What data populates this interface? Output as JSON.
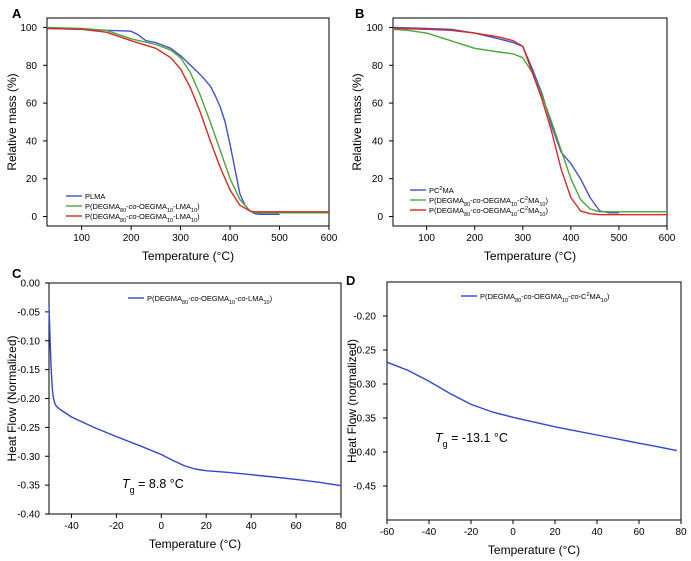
{
  "chart_data": [
    {
      "panel": "A",
      "type": "line",
      "xlabel": "Temperature (°C)",
      "ylabel": "Relative mass (%)",
      "xlim": [
        30,
        600
      ],
      "ylim": [
        -5,
        105
      ],
      "xticks": [
        100,
        200,
        300,
        400,
        500,
        600
      ],
      "yticks": [
        0,
        20,
        40,
        60,
        80,
        100
      ],
      "legend_position": "lower-left",
      "series": [
        {
          "name": "PLMA",
          "legend_parts": [
            [
              "PLMA",
              ""
            ]
          ],
          "color": "#3f51c8",
          "x": [
            30,
            100,
            150,
            200,
            215,
            230,
            250,
            280,
            300,
            320,
            340,
            360,
            370,
            380,
            390,
            400,
            410,
            420,
            430,
            440,
            450,
            460,
            500
          ],
          "y": [
            99.5,
            99,
            98.5,
            98,
            96,
            93,
            92,
            89,
            85,
            80,
            75,
            69,
            64,
            58,
            50,
            38,
            25,
            12,
            6,
            3,
            1.5,
            1.2,
            1.2
          ]
        },
        {
          "name": "P(DEGMA80-co-OEGMA10-LMA10)",
          "legend_parts": [
            [
              "P(DEGMA",
              ""
            ],
            [
              "80",
              "sub"
            ],
            [
              "-",
              ""
            ],
            [
              "co",
              "i"
            ],
            [
              "-OEGMA",
              ""
            ],
            [
              "10",
              "sub"
            ],
            [
              "-LMA",
              ""
            ],
            [
              "10",
              "sub"
            ],
            [
              ")",
              ""
            ]
          ],
          "color": "#4ea43a",
          "x": [
            30,
            100,
            150,
            200,
            250,
            280,
            300,
            320,
            340,
            360,
            380,
            400,
            420,
            440,
            450,
            460,
            600
          ],
          "y": [
            100,
            99.5,
            98.5,
            94,
            91,
            88,
            84,
            76,
            64,
            50,
            35,
            20,
            9,
            3,
            2,
            2,
            2
          ]
        },
        {
          "name": "P(DEGMA80-co-OEGMA10-LMA10)",
          "legend_parts": [
            [
              "P(DEGMA",
              ""
            ],
            [
              "80",
              "sub"
            ],
            [
              "-",
              ""
            ],
            [
              "co",
              "i"
            ],
            [
              "-OEGMA",
              ""
            ],
            [
              "10",
              "sub"
            ],
            [
              "-LMA",
              ""
            ],
            [
              "10",
              "sub"
            ],
            [
              ")",
              ""
            ]
          ],
          "color": "#d62828",
          "x": [
            30,
            100,
            150,
            200,
            250,
            280,
            300,
            320,
            340,
            360,
            380,
            400,
            420,
            440,
            450,
            460,
            600
          ],
          "y": [
            99.5,
            99,
            97.5,
            93,
            89,
            84,
            78,
            68,
            55,
            40,
            26,
            14,
            6,
            3,
            2.5,
            2.5,
            2.5
          ]
        }
      ]
    },
    {
      "panel": "B",
      "type": "line",
      "xlabel": "Temperature (°C)",
      "ylabel": "Relative mass (%)",
      "xlim": [
        30,
        600
      ],
      "ylim": [
        -5,
        105
      ],
      "xticks": [
        100,
        200,
        300,
        400,
        500,
        600
      ],
      "yticks": [
        0,
        20,
        40,
        60,
        80,
        100
      ],
      "legend_position": "lower-left",
      "series": [
        {
          "name": "PC2MA",
          "legend_parts": [
            [
              "PC",
              ""
            ],
            [
              "2",
              "sup"
            ],
            [
              "MA",
              ""
            ]
          ],
          "color": "#3f51c8",
          "x": [
            30,
            100,
            150,
            200,
            250,
            280,
            300,
            320,
            340,
            360,
            380,
            400,
            420,
            440,
            460,
            480,
            500
          ],
          "y": [
            100,
            99.5,
            99,
            97,
            94,
            92,
            90,
            78,
            65,
            48,
            34,
            28,
            20,
            10,
            3,
            2,
            2
          ]
        },
        {
          "name": "P(DEGMA80-co-OEGMA10-C2MA10)",
          "legend_parts": [
            [
              "P(DEGMA",
              ""
            ],
            [
              "80",
              "sub"
            ],
            [
              "-",
              ""
            ],
            [
              "co",
              "i"
            ],
            [
              "-OEGMA",
              ""
            ],
            [
              "10",
              "sub"
            ],
            [
              "-C",
              ""
            ],
            [
              "2",
              "sup"
            ],
            [
              "MA",
              ""
            ],
            [
              "10",
              "sub"
            ],
            [
              ")",
              ""
            ]
          ],
          "color": "#4ea43a",
          "x": [
            30,
            60,
            100,
            150,
            200,
            250,
            280,
            300,
            320,
            340,
            360,
            380,
            400,
            420,
            440,
            460,
            600
          ],
          "y": [
            99,
            98.5,
            97,
            93,
            89,
            87,
            86,
            84,
            76,
            64,
            50,
            35,
            20,
            9,
            4,
            2.5,
            2.5
          ]
        },
        {
          "name": "P(DEGMA80-co-OEGMA10-C2MA10)",
          "legend_parts": [
            [
              "P(DEGMA",
              ""
            ],
            [
              "80",
              "sub"
            ],
            [
              "-",
              ""
            ],
            [
              "co",
              "i"
            ],
            [
              "-OEGMA",
              ""
            ],
            [
              "10",
              "sub"
            ],
            [
              "-C",
              ""
            ],
            [
              "2",
              "sup"
            ],
            [
              "MA",
              ""
            ],
            [
              "10",
              "sub"
            ],
            [
              ")",
              ""
            ]
          ],
          "color": "#d62828",
          "x": [
            30,
            100,
            150,
            200,
            250,
            280,
            300,
            320,
            340,
            360,
            380,
            400,
            420,
            440,
            460,
            600
          ],
          "y": [
            99.5,
            99,
            98.5,
            97,
            95,
            93,
            90,
            76,
            62,
            45,
            25,
            10,
            3,
            1.5,
            1,
            1
          ]
        }
      ]
    },
    {
      "panel": "C",
      "type": "line",
      "xlabel": "Temperature (°C)",
      "ylabel": "Heat Flow (Normalized)",
      "xlim": [
        -50,
        80
      ],
      "ylim": [
        -0.4,
        0.0
      ],
      "xticks": [
        -40,
        -20,
        0,
        20,
        40,
        60,
        80
      ],
      "yticks": [
        0.0,
        -0.05,
        -0.1,
        -0.15,
        -0.2,
        -0.25,
        -0.3,
        -0.35,
        -0.4
      ],
      "ytick_labels": [
        "0.00",
        "-0.05",
        "-0.10",
        "-0.15",
        "-0.20",
        "-0.25",
        "-0.30",
        "-0.35",
        "-0.40"
      ],
      "legend_position": "top-right",
      "annotation": {
        "prefix": "T",
        "sub": "g",
        "text": " = 8.8 °C"
      },
      "series": [
        {
          "name": "P(DEGMA80-co-OEGMA10-co-LMA10)",
          "legend_parts": [
            [
              "P(DEGMA",
              ""
            ],
            [
              "80",
              "sub"
            ],
            [
              "-",
              ""
            ],
            [
              "co",
              "i"
            ],
            [
              "-OEGMA",
              ""
            ],
            [
              "10",
              "sub"
            ],
            [
              "-",
              ""
            ],
            [
              "co",
              "i"
            ],
            [
              "-LMA",
              ""
            ],
            [
              "10",
              "sub"
            ],
            [
              ")",
              ""
            ]
          ],
          "color": "#2f48d0",
          "x": [
            -50,
            -49.5,
            -49,
            -48.5,
            -48,
            -47.5,
            -47,
            -46,
            -45,
            -40,
            -30,
            -20,
            -10,
            0,
            5,
            10,
            15,
            20,
            30,
            40,
            50,
            60,
            70,
            80
          ],
          "y": [
            -0.04,
            -0.1,
            -0.15,
            -0.185,
            -0.2,
            -0.207,
            -0.212,
            -0.216,
            -0.219,
            -0.232,
            -0.25,
            -0.266,
            -0.281,
            -0.297,
            -0.307,
            -0.316,
            -0.322,
            -0.325,
            -0.328,
            -0.332,
            -0.336,
            -0.34,
            -0.345,
            -0.351
          ]
        }
      ]
    },
    {
      "panel": "D",
      "type": "line",
      "xlabel": "Temperature (°C)",
      "ylabel": "Heat Flow (normalized)",
      "xlim": [
        -60,
        80
      ],
      "ylim": [
        -0.5,
        -0.15
      ],
      "xticks": [
        -60,
        -40,
        -20,
        0,
        20,
        40,
        60,
        80
      ],
      "yticks": [
        -0.2,
        -0.25,
        -0.3,
        -0.35,
        -0.4,
        -0.45
      ],
      "ytick_labels": [
        "-0.20",
        "-0.25",
        "-0.30",
        "-0.35",
        "-0.40",
        "-0.45"
      ],
      "legend_position": "top-right",
      "annotation": {
        "prefix": "T",
        "sub": "g",
        "text": " = -13.1 °C"
      },
      "series": [
        {
          "name": "P(DEGMA80-co-OEGMA10-co-C2MA10)",
          "legend_parts": [
            [
              "P(DEGMA",
              ""
            ],
            [
              "80",
              "sub"
            ],
            [
              "-",
              ""
            ],
            [
              "co",
              "i"
            ],
            [
              "-OEGMA",
              ""
            ],
            [
              "10",
              "sub"
            ],
            [
              "-",
              ""
            ],
            [
              "co",
              "i"
            ],
            [
              "-C",
              ""
            ],
            [
              "2",
              "sup"
            ],
            [
              "MA",
              ""
            ],
            [
              "10",
              "sub"
            ],
            [
              ")",
              ""
            ]
          ],
          "color": "#2f48d0",
          "x": [
            -60,
            -50,
            -40,
            -30,
            -20,
            -10,
            0,
            10,
            20,
            30,
            40,
            50,
            60,
            70,
            78
          ],
          "y": [
            -0.268,
            -0.28,
            -0.296,
            -0.314,
            -0.33,
            -0.341,
            -0.349,
            -0.356,
            -0.363,
            -0.369,
            -0.375,
            -0.381,
            -0.387,
            -0.393,
            -0.398
          ]
        }
      ]
    }
  ]
}
